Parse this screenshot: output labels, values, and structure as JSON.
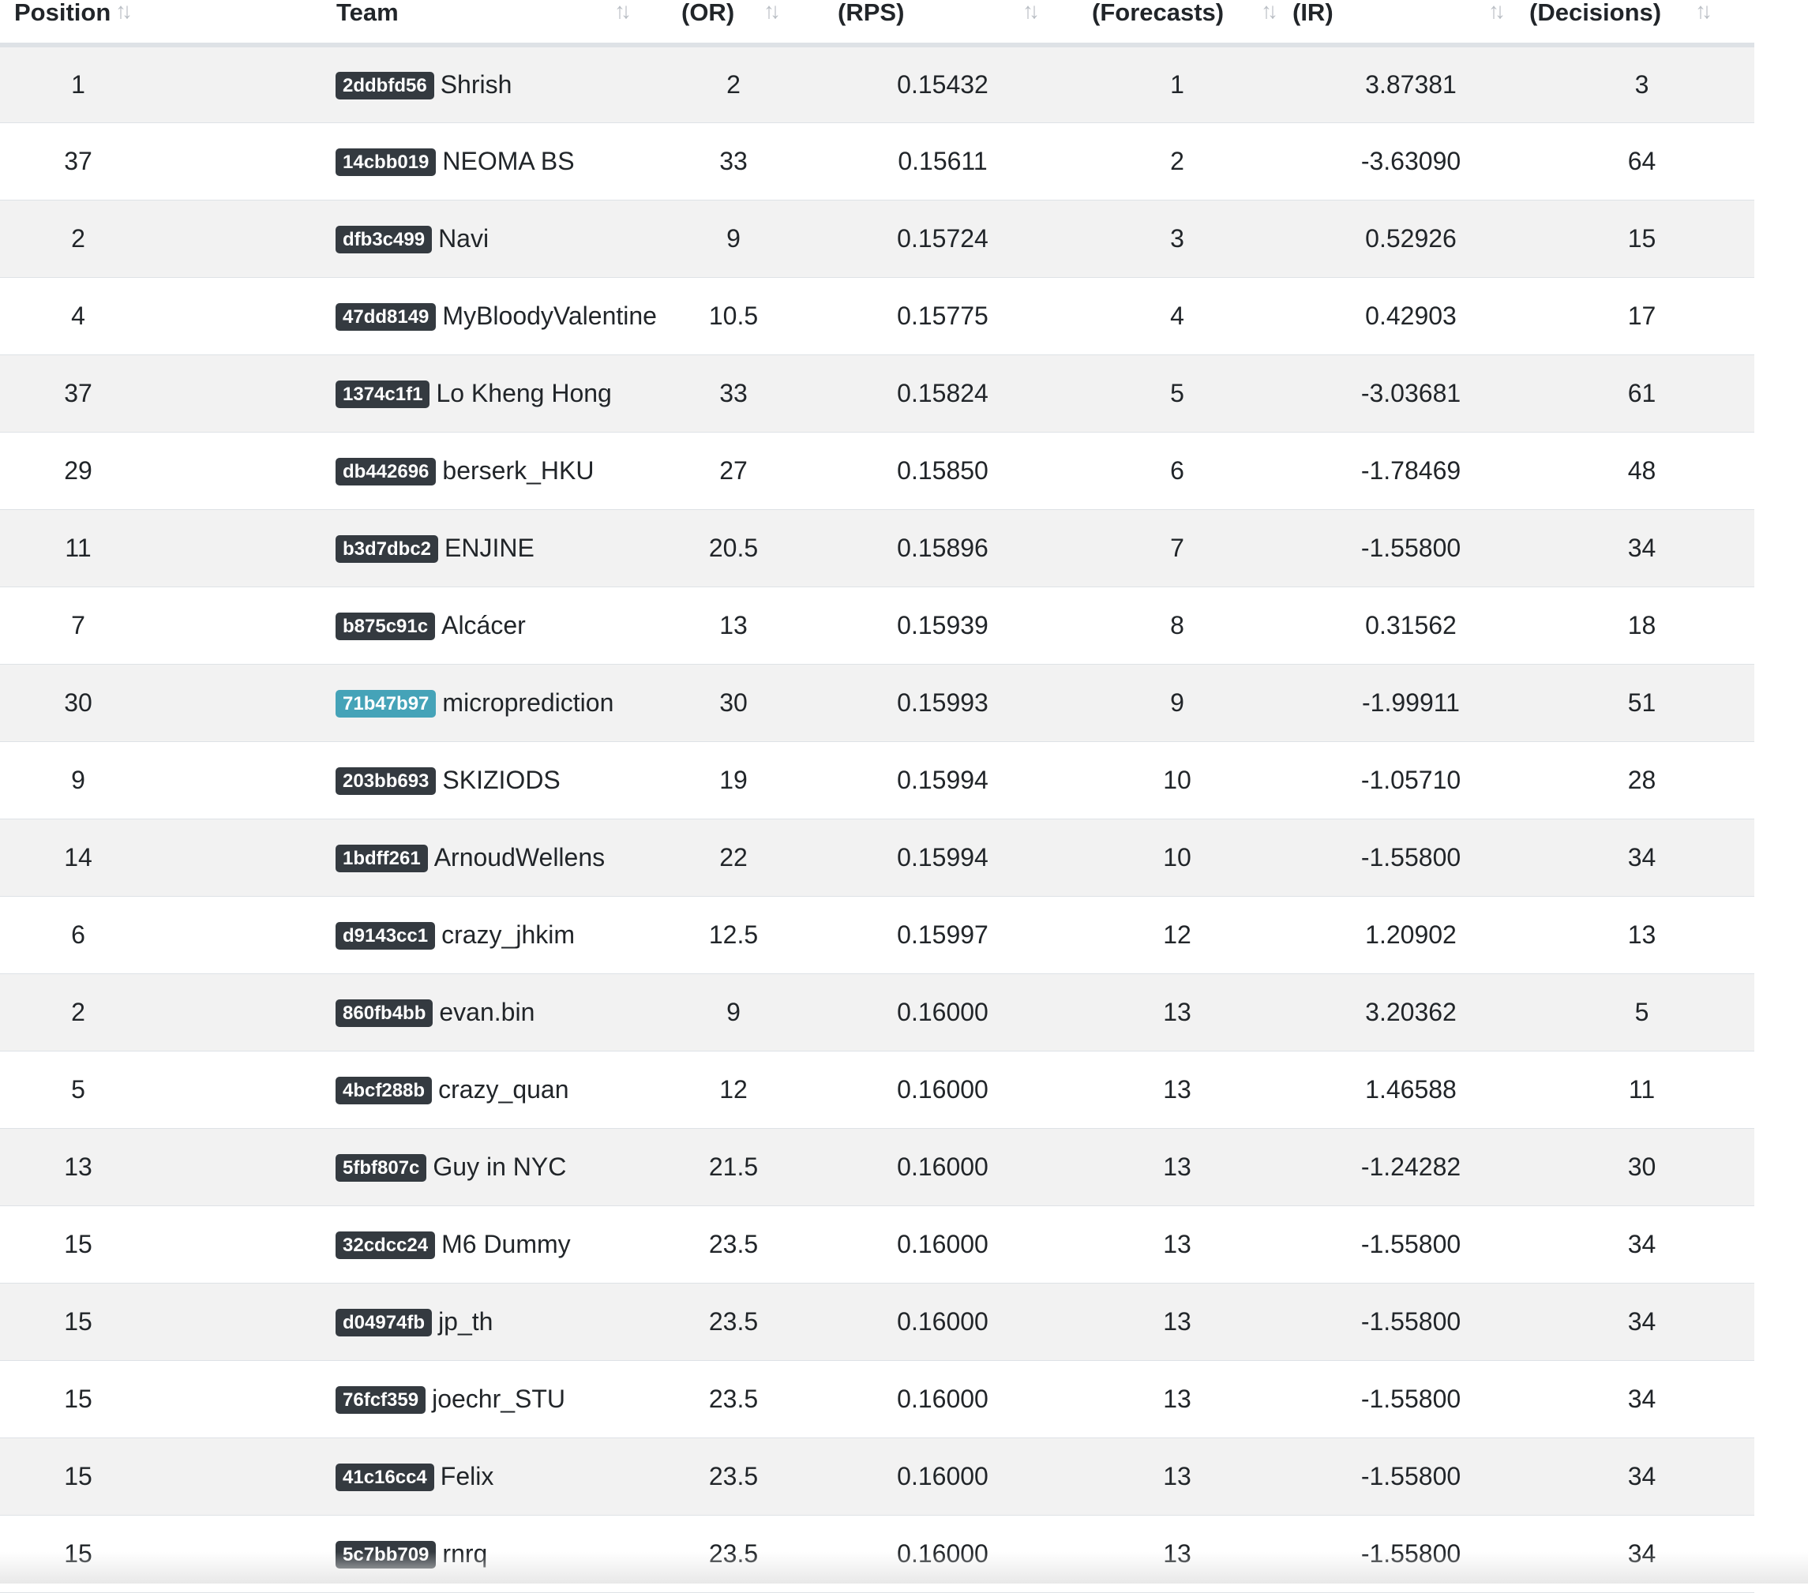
{
  "table": {
    "headers": [
      {
        "label": "Position",
        "key": "position"
      },
      {
        "label": "Team",
        "key": "team"
      },
      {
        "label": "(OR)",
        "key": "or"
      },
      {
        "label": "(RPS)",
        "key": "rps"
      },
      {
        "label": "(Forecasts)",
        "key": "forecasts"
      },
      {
        "label": "(IR)",
        "key": "ir"
      },
      {
        "label": "(Decisions)",
        "key": "decisions"
      }
    ],
    "sort_icon": "sort-arrows-icon",
    "rows": [
      {
        "position": "1",
        "id": "2ddbfd56",
        "team": "Shrish",
        "or": "2",
        "rps": "0.15432",
        "forecasts": "1",
        "ir": "3.87381",
        "decisions": "3"
      },
      {
        "position": "37",
        "id": "14cbb019",
        "team": "NEOMA BS",
        "or": "33",
        "rps": "0.15611",
        "forecasts": "2",
        "ir": "-3.63090",
        "decisions": "64"
      },
      {
        "position": "2",
        "id": "dfb3c499",
        "team": "Navi",
        "or": "9",
        "rps": "0.15724",
        "forecasts": "3",
        "ir": "0.52926",
        "decisions": "15"
      },
      {
        "position": "4",
        "id": "47dd8149",
        "team": "MyBloodyValentine",
        "or": "10.5",
        "rps": "0.15775",
        "forecasts": "4",
        "ir": "0.42903",
        "decisions": "17"
      },
      {
        "position": "37",
        "id": "1374c1f1",
        "team": "Lo Kheng Hong",
        "or": "33",
        "rps": "0.15824",
        "forecasts": "5",
        "ir": "-3.03681",
        "decisions": "61"
      },
      {
        "position": "29",
        "id": "db442696",
        "team": "berserk_HKU",
        "or": "27",
        "rps": "0.15850",
        "forecasts": "6",
        "ir": "-1.78469",
        "decisions": "48"
      },
      {
        "position": "11",
        "id": "b3d7dbc2",
        "team": "ENJINE",
        "or": "20.5",
        "rps": "0.15896",
        "forecasts": "7",
        "ir": "-1.55800",
        "decisions": "34"
      },
      {
        "position": "7",
        "id": "b875c91c",
        "team": "Alcácer",
        "or": "13",
        "rps": "0.15939",
        "forecasts": "8",
        "ir": "0.31562",
        "decisions": "18"
      },
      {
        "position": "30",
        "id": "71b47b97",
        "team": "microprediction",
        "or": "30",
        "rps": "0.15993",
        "forecasts": "9",
        "ir": "-1.99911",
        "decisions": "51",
        "highlight": true
      },
      {
        "position": "9",
        "id": "203bb693",
        "team": "SKIZIODS",
        "or": "19",
        "rps": "0.15994",
        "forecasts": "10",
        "ir": "-1.05710",
        "decisions": "28"
      },
      {
        "position": "14",
        "id": "1bdff261",
        "team": "ArnoudWellens",
        "or": "22",
        "rps": "0.15994",
        "forecasts": "10",
        "ir": "-1.55800",
        "decisions": "34"
      },
      {
        "position": "6",
        "id": "d9143cc1",
        "team": "crazy_jhkim",
        "or": "12.5",
        "rps": "0.15997",
        "forecasts": "12",
        "ir": "1.20902",
        "decisions": "13"
      },
      {
        "position": "2",
        "id": "860fb4bb",
        "team": "evan.bin",
        "or": "9",
        "rps": "0.16000",
        "forecasts": "13",
        "ir": "3.20362",
        "decisions": "5"
      },
      {
        "position": "5",
        "id": "4bcf288b",
        "team": "crazy_quan",
        "or": "12",
        "rps": "0.16000",
        "forecasts": "13",
        "ir": "1.46588",
        "decisions": "11"
      },
      {
        "position": "13",
        "id": "5fbf807c",
        "team": "Guy in NYC",
        "or": "21.5",
        "rps": "0.16000",
        "forecasts": "13",
        "ir": "-1.24282",
        "decisions": "30"
      },
      {
        "position": "15",
        "id": "32cdcc24",
        "team": "M6 Dummy",
        "or": "23.5",
        "rps": "0.16000",
        "forecasts": "13",
        "ir": "-1.55800",
        "decisions": "34"
      },
      {
        "position": "15",
        "id": "d04974fb",
        "team": "jp_th",
        "or": "23.5",
        "rps": "0.16000",
        "forecasts": "13",
        "ir": "-1.55800",
        "decisions": "34"
      },
      {
        "position": "15",
        "id": "76fcf359",
        "team": "joechr_STU",
        "or": "23.5",
        "rps": "0.16000",
        "forecasts": "13",
        "ir": "-1.55800",
        "decisions": "34"
      },
      {
        "position": "15",
        "id": "41c16cc4",
        "team": "Felix",
        "or": "23.5",
        "rps": "0.16000",
        "forecasts": "13",
        "ir": "-1.55800",
        "decisions": "34"
      },
      {
        "position": "15",
        "id": "5c7bb709",
        "team": "rnrq",
        "or": "23.5",
        "rps": "0.16000",
        "forecasts": "13",
        "ir": "-1.55800",
        "decisions": "34"
      }
    ]
  },
  "colors": {
    "badge_default": "#343a40",
    "badge_highlight": "#45a3b8",
    "row_stripe": "#f2f2f2"
  }
}
